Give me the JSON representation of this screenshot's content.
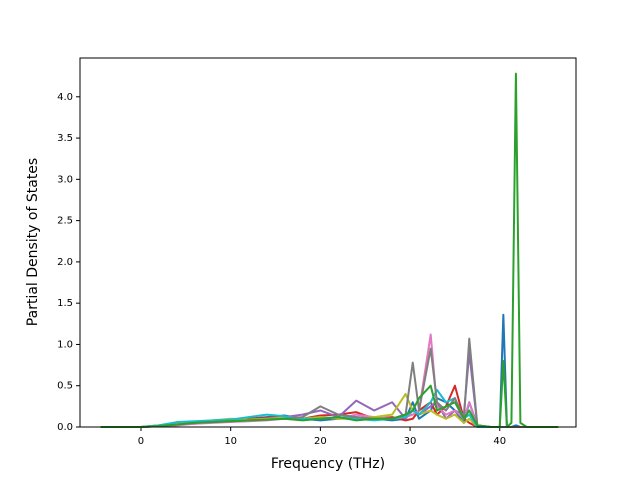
{
  "chart_data": {
    "type": "line",
    "xlabel": "Frequency (THz)",
    "ylabel": "Partial Density of States",
    "x": [
      -4.5,
      0,
      2,
      4,
      6,
      8,
      10,
      12,
      14,
      16,
      18,
      20,
      22,
      24,
      26,
      28,
      29.5,
      30.3,
      31,
      32.3,
      33,
      34,
      35,
      36,
      36.6,
      37.5,
      39,
      40,
      40.4,
      40.8,
      41.3,
      41.8,
      42.3,
      43,
      46.5
    ],
    "series": [
      {
        "color": "#1f77b4",
        "values": [
          0,
          0,
          0.02,
          0.05,
          0.06,
          0.07,
          0.08,
          0.1,
          0.12,
          0.14,
          0.1,
          0.08,
          0.1,
          0.12,
          0.1,
          0.08,
          0.1,
          0.3,
          0.1,
          0.2,
          0.35,
          0.3,
          0.2,
          0.05,
          0.3,
          0.02,
          0,
          0,
          1.36,
          0,
          0,
          0.02,
          0,
          0,
          0
        ]
      },
      {
        "color": "#d62728",
        "values": [
          0,
          0,
          0.01,
          0.04,
          0.05,
          0.07,
          0.08,
          0.1,
          0.11,
          0.12,
          0.1,
          0.14,
          0.15,
          0.18,
          0.1,
          0.12,
          0.08,
          0.1,
          0.2,
          0.3,
          0.15,
          0.25,
          0.5,
          0.1,
          0.05,
          0,
          0,
          0,
          0,
          0,
          0,
          0,
          0,
          0,
          0
        ]
      },
      {
        "color": "#9467bd",
        "values": [
          0,
          0,
          0.01,
          0.03,
          0.04,
          0.06,
          0.07,
          0.08,
          0.1,
          0.12,
          0.15,
          0.2,
          0.12,
          0.32,
          0.2,
          0.3,
          0.1,
          0.2,
          0.15,
          0.25,
          0.3,
          0.1,
          0.2,
          0.15,
          0.9,
          0.02,
          0,
          0,
          0,
          0,
          0,
          0,
          0,
          0,
          0
        ]
      },
      {
        "color": "#e377c2",
        "values": [
          0,
          0,
          0.01,
          0.02,
          0.04,
          0.05,
          0.06,
          0.07,
          0.08,
          0.1,
          0.09,
          0.12,
          0.1,
          0.15,
          0.12,
          0.1,
          0.12,
          0.15,
          0.2,
          1.12,
          0.25,
          0.15,
          0.2,
          0.1,
          0.3,
          0,
          0,
          0,
          0,
          0,
          0,
          0,
          0,
          0,
          0
        ]
      },
      {
        "color": "#bcbd22",
        "values": [
          0,
          0,
          0.02,
          0.04,
          0.06,
          0.08,
          0.1,
          0.09,
          0.1,
          0.11,
          0.1,
          0.12,
          0.1,
          0.1,
          0.12,
          0.15,
          0.4,
          0.2,
          0.15,
          0.2,
          0.15,
          0.1,
          0.15,
          0.05,
          0.1,
          0,
          0,
          0,
          0,
          0,
          0,
          0,
          0,
          0,
          0
        ]
      },
      {
        "color": "#17becf",
        "values": [
          0,
          0,
          0.02,
          0.06,
          0.07,
          0.08,
          0.09,
          0.12,
          0.15,
          0.13,
          0.1,
          0.1,
          0.12,
          0.1,
          0.08,
          0.1,
          0.12,
          0.2,
          0.15,
          0.3,
          0.45,
          0.3,
          0.35,
          0.1,
          0.15,
          0,
          0,
          0,
          0,
          0,
          0,
          0,
          0,
          0,
          0
        ]
      },
      {
        "color": "#7f7f7f",
        "values": [
          0,
          0,
          0.01,
          0.03,
          0.05,
          0.06,
          0.07,
          0.08,
          0.09,
          0.1,
          0.12,
          0.25,
          0.15,
          0.12,
          0.1,
          0.1,
          0.15,
          0.78,
          0.2,
          0.95,
          0.3,
          0.2,
          0.35,
          0.1,
          1.07,
          0.02,
          0,
          0,
          0,
          0,
          0,
          0,
          0,
          0,
          0
        ]
      },
      {
        "color": "#2ca02c",
        "values": [
          0,
          0,
          0.01,
          0.03,
          0.05,
          0.06,
          0.07,
          0.08,
          0.09,
          0.1,
          0.08,
          0.1,
          0.12,
          0.08,
          0.1,
          0.1,
          0.15,
          0.2,
          0.35,
          0.5,
          0.2,
          0.25,
          0.3,
          0.1,
          0.2,
          0.02,
          0,
          0,
          0.8,
          0,
          0.05,
          4.28,
          0.05,
          0,
          0
        ]
      }
    ],
    "xlim": [
      -6.8,
      48.5
    ],
    "xticks": [
      0,
      10,
      20,
      30,
      40
    ],
    "ylim": [
      0,
      4.47
    ],
    "yticks": [
      {
        "value": 0,
        "label": "0.0"
      },
      {
        "value": 0.5,
        "label": "0.5"
      },
      {
        "value": 1,
        "label": "1.0"
      },
      {
        "value": 1.5,
        "label": "1.5"
      },
      {
        "value": 2,
        "label": "2.0"
      },
      {
        "value": 2.5,
        "label": "2.5"
      },
      {
        "value": 3,
        "label": "3.0"
      },
      {
        "value": 3.5,
        "label": "3.5"
      },
      {
        "value": 4,
        "label": "4.0"
      }
    ]
  }
}
